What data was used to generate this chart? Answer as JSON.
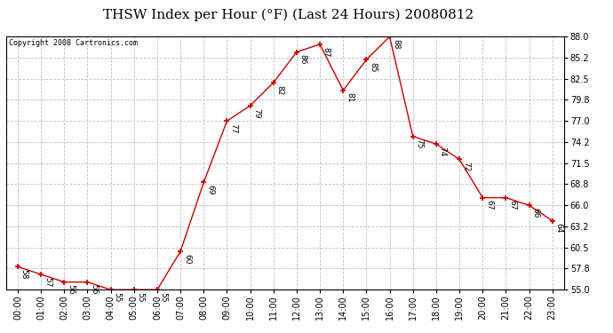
{
  "title": "THSW Index per Hour (°F) (Last 24 Hours) 20080812",
  "copyright": "Copyright 2008 Cartronics.com",
  "hours": [
    "00:00",
    "01:00",
    "02:00",
    "03:00",
    "04:00",
    "05:00",
    "06:00",
    "07:00",
    "08:00",
    "09:00",
    "10:00",
    "11:00",
    "12:00",
    "13:00",
    "14:00",
    "15:00",
    "16:00",
    "17:00",
    "18:00",
    "19:00",
    "20:00",
    "21:00",
    "22:00",
    "23:00"
  ],
  "values": [
    58,
    57,
    56,
    56,
    55,
    55,
    55,
    60,
    69,
    77,
    79,
    82,
    86,
    87,
    81,
    85,
    88,
    75,
    74,
    72,
    67,
    67,
    66,
    64
  ],
  "ylim": [
    55.0,
    88.0
  ],
  "yticks": [
    55.0,
    57.8,
    60.5,
    63.2,
    66.0,
    68.8,
    71.5,
    74.2,
    77.0,
    79.8,
    82.5,
    85.2,
    88.0
  ],
  "line_color": "#cc0000",
  "marker_color": "#cc0000",
  "bg_color": "#ffffff",
  "plot_bg_color": "#ffffff",
  "grid_color": "#bbbbbb",
  "title_fontsize": 11,
  "label_fontsize": 7,
  "annotation_fontsize": 6.5,
  "copyright_fontsize": 6
}
